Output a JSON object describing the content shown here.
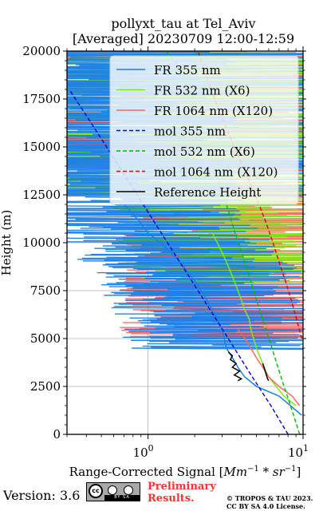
{
  "title_line1": "pollyxt_tau at Tel_Aviv",
  "title_line2": "[Averaged] 20230709 12:00-12:59",
  "footer": {
    "version": "Version: 3.6",
    "preliminary_line1": "Preliminary",
    "preliminary_line2": "Results.",
    "copyright_line1": "© TROPOS & TAU 2023.",
    "copyright_line2": "CC BY SA 4.0 License.",
    "badge_text": "BY  SA",
    "badge_icon": "cc-by-sa-icon"
  },
  "chart_data": {
    "type": "line",
    "xlabel": "Range-Corrected Signal [Mm^-1 * sr^-1]",
    "ylabel": "Height (m)",
    "xscale": "log",
    "xlim": [
      0.3,
      10
    ],
    "ylim": [
      0,
      20000
    ],
    "xticks": [
      1,
      10
    ],
    "xtick_labels": [
      "10^0",
      "10^1"
    ],
    "yticks": [
      0,
      2500,
      5000,
      7500,
      10000,
      12500,
      15000,
      17500,
      20000
    ],
    "ytick_labels": [
      "0",
      "2500",
      "5000",
      "7500",
      "10000",
      "12500",
      "15000",
      "17500",
      "20000"
    ],
    "grid": true,
    "legend_position": "top-right",
    "series": [
      {
        "name": "FR 355 nm",
        "color": "#1a7fe6",
        "style": "solid",
        "x": [
          9.8,
          7.0,
          5.0,
          4.2,
          3.8,
          3.5,
          3.2,
          3.1,
          3.0,
          2.8,
          2.6,
          2.4,
          2.2,
          2.0,
          1.8,
          1.6,
          1.4,
          1.2,
          1.0,
          0.9,
          0.8,
          0.7
        ],
        "y": [
          1000,
          2000,
          2500,
          3000,
          3500,
          4000,
          4500,
          5000,
          5500,
          6000,
          6500,
          7000,
          7500,
          8000,
          8500,
          9000,
          9500,
          10000,
          10500,
          11000,
          11500,
          12000
        ],
        "noise_band": [
          4500,
          20000
        ]
      },
      {
        "name": "FR 532 nm (X6)",
        "color": "#80e619",
        "style": "solid",
        "x": [
          9.0,
          7.5,
          6.0,
          5.6,
          5.3,
          5.0,
          4.8,
          4.6,
          4.5,
          4.2,
          4.0,
          3.8,
          3.6,
          3.4,
          3.2,
          3.0,
          2.8,
          2.6
        ],
        "y": [
          1500,
          2000,
          3000,
          3500,
          4000,
          4500,
          5000,
          5500,
          6000,
          6500,
          7000,
          7500,
          8000,
          8500,
          9000,
          9500,
          10000,
          10500
        ],
        "noise_band": [
          8000,
          20000
        ]
      },
      {
        "name": "FR 1064 nm (X120)",
        "color": "#ff6666",
        "style": "solid",
        "x": [
          9.5,
          8.5,
          7.0,
          6.0,
          5.5,
          5.0,
          4.6,
          4.2,
          3.8
        ],
        "y": [
          1500,
          2000,
          2500,
          3000,
          3500,
          4000,
          4500,
          5000,
          5500
        ],
        "noise_band": [
          5000,
          20000
        ]
      },
      {
        "name": "mol 355 nm",
        "color": "#0000dd",
        "style": "dashed",
        "x": [
          8.0,
          6.2,
          4.7,
          3.6,
          2.75,
          2.1,
          1.6,
          1.22,
          0.93,
          0.71,
          0.54,
          0.41,
          0.31
        ],
        "y": [
          0,
          1500,
          3000,
          4500,
          6000,
          7500,
          9000,
          10500,
          12000,
          13500,
          15000,
          16500,
          18000
        ]
      },
      {
        "name": "mol 532 nm (X6)",
        "color": "#00bb00",
        "style": "dashed",
        "x": [
          9.5,
          8.3,
          7.2,
          6.3,
          5.5,
          4.8,
          4.2,
          3.65,
          3.2,
          2.8,
          2.45,
          2.15,
          1.88,
          1.65,
          1.45,
          1.3
        ],
        "y": [
          0,
          1500,
          3000,
          4500,
          6000,
          7500,
          9000,
          10500,
          12000,
          13500,
          15000,
          16500,
          18000,
          19000,
          19600,
          20000
        ]
      },
      {
        "name": "mol 1064 nm (X120)",
        "color": "#dd0000",
        "style": "dashed",
        "x": [
          9.8,
          9.1,
          8.4,
          7.7,
          7.0,
          6.4,
          5.8,
          5.2,
          4.6,
          4.1,
          3.6,
          3.2,
          2.85,
          2.55,
          2.3,
          2.1
        ],
        "y": [
          5000,
          6000,
          7000,
          8000,
          9000,
          10000,
          11000,
          12000,
          13000,
          14000,
          15000,
          16000,
          17000,
          18000,
          19000,
          20000
        ]
      },
      {
        "name": "Reference Height",
        "color": "#000000",
        "style": "solid",
        "segments": [
          {
            "x": [
              3.3,
              3.5,
              3.4,
              3.7,
              3.5,
              3.9,
              3.6,
              4.0,
              3.8
            ],
            "y": [
              4300,
              4100,
              3900,
              3700,
              3500,
              3300,
              3100,
              2900,
              2800
            ]
          },
          {
            "x": [
              5.5,
              5.6,
              5.7,
              5.8,
              5.9,
              6.0
            ],
            "y": [
              3700,
              3500,
              3300,
              3100,
              2900,
              2800
            ]
          }
        ]
      }
    ]
  }
}
